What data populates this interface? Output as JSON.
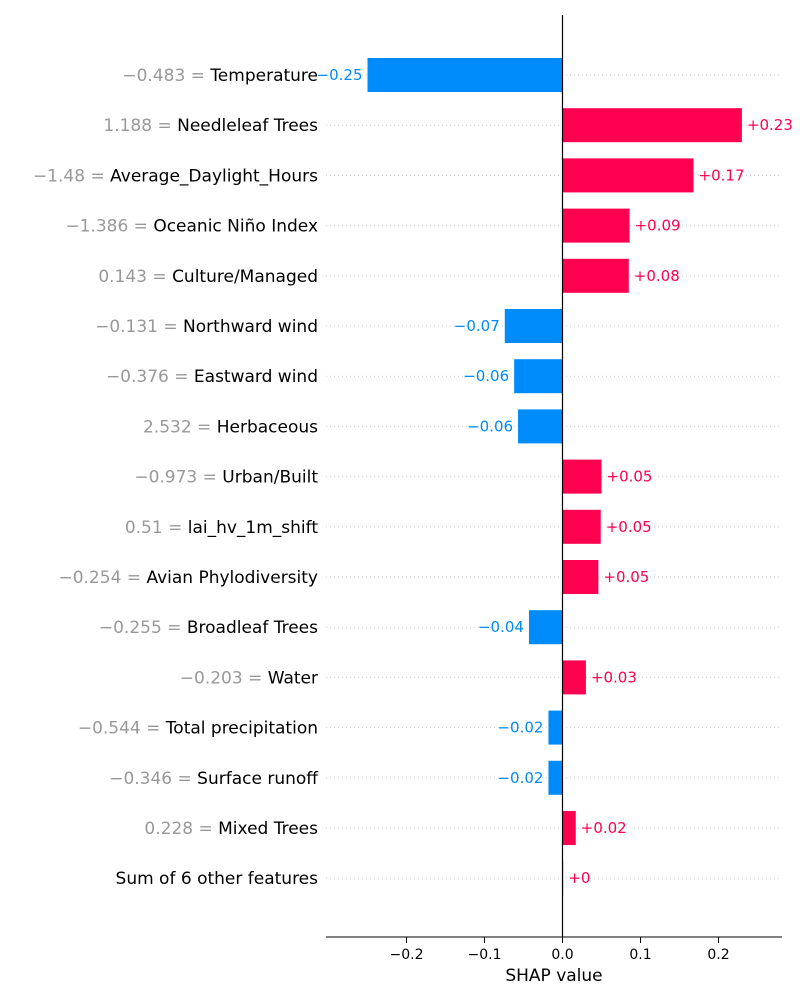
{
  "chart_data": {
    "type": "bar",
    "orientation": "horizontal",
    "title": "",
    "xlabel": "SHAP value",
    "ylabel": "",
    "xlim": [
      -0.3,
      0.28
    ],
    "xticks": [
      -0.2,
      -0.1,
      0.0,
      0.1,
      0.2
    ],
    "xtick_labels": [
      "−0.2",
      "−0.1",
      "0.0",
      "0.1",
      "0.2"
    ],
    "grid": "dotted horizontal",
    "colors": {
      "positive": "#ff0051",
      "negative": "#008bfb",
      "zero": "#cccccc",
      "feature_value": "#999999"
    },
    "rows": [
      {
        "feature_value": "−0.483 =",
        "feature": "Temperature",
        "value": -0.25,
        "label": "−0.25"
      },
      {
        "feature_value": "1.188 =",
        "feature": "Needleleaf Trees",
        "value": 0.23,
        "label": "+0.23"
      },
      {
        "feature_value": "−1.48 =",
        "feature": "Average_Daylight_Hours",
        "value": 0.168,
        "label": "+0.17"
      },
      {
        "feature_value": "−1.386 =",
        "feature": "Oceanic Niño Index",
        "value": 0.086,
        "label": "+0.09"
      },
      {
        "feature_value": "0.143 =",
        "feature": "Culture/Managed",
        "value": 0.085,
        "label": "+0.08"
      },
      {
        "feature_value": "−0.131 =",
        "feature": "Northward wind",
        "value": -0.074,
        "label": "−0.07"
      },
      {
        "feature_value": "−0.376 =",
        "feature": "Eastward wind",
        "value": -0.062,
        "label": "−0.06"
      },
      {
        "feature_value": "2.532 =",
        "feature": "Herbaceous",
        "value": -0.057,
        "label": "−0.06"
      },
      {
        "feature_value": "−0.973 =",
        "feature": "Urban/Built",
        "value": 0.05,
        "label": "+0.05"
      },
      {
        "feature_value": "0.51 =",
        "feature": "lai_hv_1m_shift",
        "value": 0.049,
        "label": "+0.05"
      },
      {
        "feature_value": "−0.254 =",
        "feature": "Avian Phylodiversity",
        "value": 0.046,
        "label": "+0.05"
      },
      {
        "feature_value": "−0.255 =",
        "feature": "Broadleaf Trees",
        "value": -0.043,
        "label": "−0.04"
      },
      {
        "feature_value": "−0.203 =",
        "feature": "Water",
        "value": 0.03,
        "label": "+0.03"
      },
      {
        "feature_value": "−0.544 =",
        "feature": "Total precipitation",
        "value": -0.018,
        "label": "−0.02"
      },
      {
        "feature_value": "−0.346 =",
        "feature": "Surface runoff",
        "value": -0.018,
        "label": "−0.02"
      },
      {
        "feature_value": "0.228 =",
        "feature": "Mixed Trees",
        "value": 0.017,
        "label": "+0.02"
      },
      {
        "feature_value": "",
        "feature": "Sum of 6 other features",
        "value": 0.001,
        "label": "+0"
      }
    ]
  }
}
